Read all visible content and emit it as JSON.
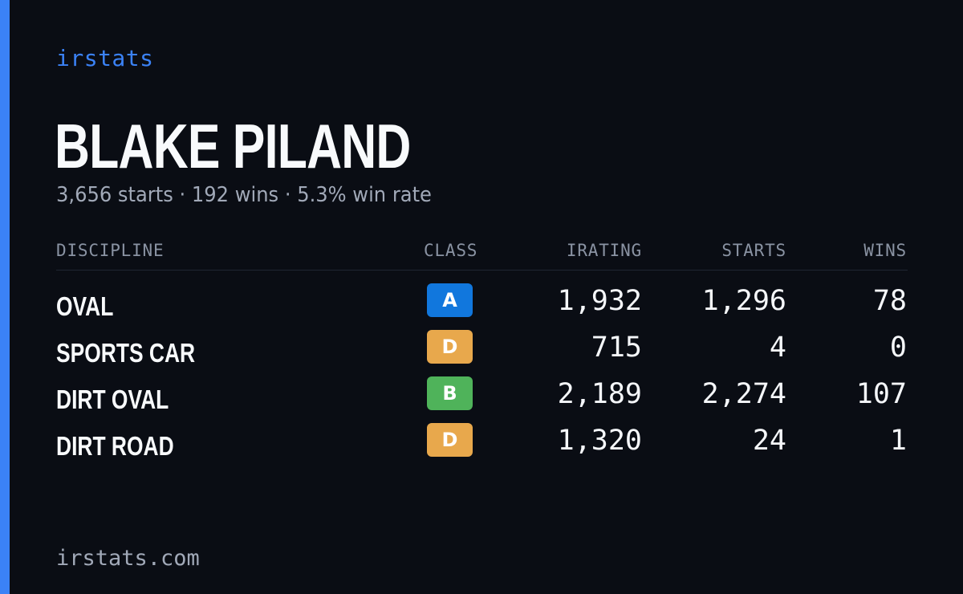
{
  "brand": "irstats",
  "player": {
    "name": "BLAKE PILAND",
    "summary": "3,656 starts · 192 wins · 5.3% win rate"
  },
  "table": {
    "headers": {
      "discipline": "DISCIPLINE",
      "class": "CLASS",
      "irating": "IRATING",
      "starts": "STARTS",
      "wins": "WINS"
    },
    "rows": [
      {
        "discipline": "OVAL",
        "class": "A",
        "class_color": "#1177dd",
        "irating": "1,932",
        "starts": "1,296",
        "wins": "78"
      },
      {
        "discipline": "SPORTS CAR",
        "class": "D",
        "class_color": "#e8a84c",
        "irating": "715",
        "starts": "4",
        "wins": "0"
      },
      {
        "discipline": "DIRT OVAL",
        "class": "B",
        "class_color": "#4fb35a",
        "irating": "2,189",
        "starts": "2,274",
        "wins": "107"
      },
      {
        "discipline": "DIRT ROAD",
        "class": "D",
        "class_color": "#e8a84c",
        "irating": "1,320",
        "starts": "24",
        "wins": "1"
      }
    ]
  },
  "footer": "irstats.com",
  "colors": {
    "background": "#0a0d14",
    "accent": "#3b82f6"
  }
}
